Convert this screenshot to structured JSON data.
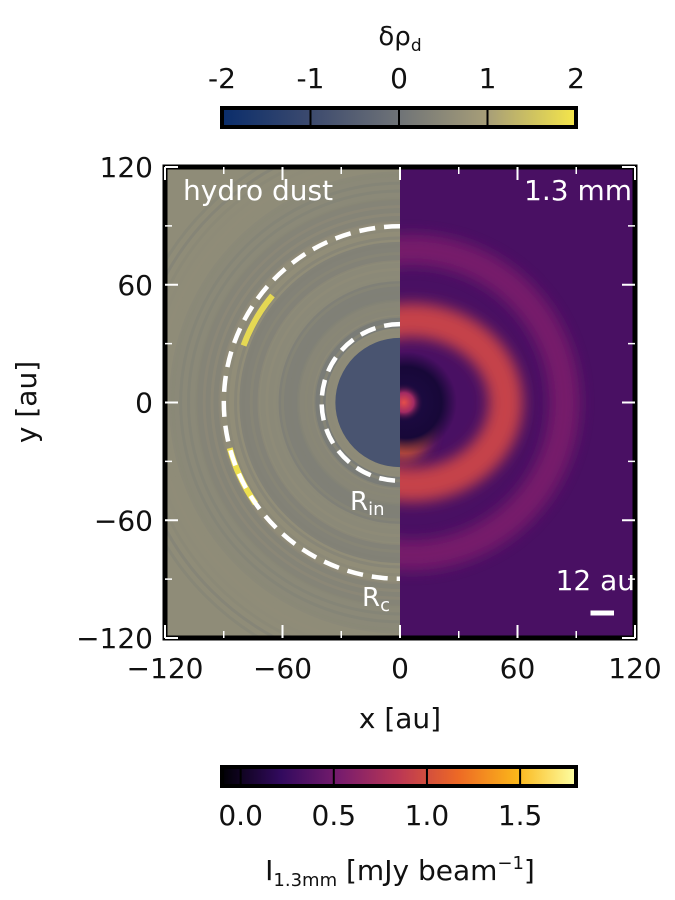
{
  "chart_data": {
    "type": "heatmap",
    "panels": [
      {
        "side": "left",
        "label": "hydro dust",
        "quantity": "δρ_d",
        "colorbar": {
          "label_main": "δρ",
          "label_sub": "d",
          "ticks": [
            -2,
            -1,
            0,
            1,
            2
          ],
          "tick_labels": [
            "-2",
            "-1",
            "0",
            "1",
            "2"
          ],
          "range": [
            -2,
            2
          ],
          "placement": "top",
          "colors": [
            "#0a2d6b",
            "#3c4a6e",
            "#6f7377",
            "#a79e78",
            "#f5e64a"
          ]
        },
        "inner_cavity_radius_au": 33,
        "rings": [
          {
            "r_au": 38,
            "value": 0.55
          },
          {
            "r_au": 44,
            "value": 0.2
          },
          {
            "r_au": 52,
            "value": 0.45
          },
          {
            "r_au": 62,
            "value": 0.3
          },
          {
            "r_au": 72,
            "value": 0.5
          },
          {
            "r_au": 82,
            "value": 0.35
          },
          {
            "r_au": 92,
            "value": 0.6
          },
          {
            "r_au": 104,
            "value": 0.4
          },
          {
            "r_au": 118,
            "value": 0.5
          }
        ],
        "bright_arcs": [
          {
            "r_au": 85,
            "theta_deg": [
              140,
              160
            ],
            "value": 1.8
          },
          {
            "r_au": 90,
            "theta_deg": [
              195,
              215
            ],
            "value": 1.9
          }
        ]
      },
      {
        "side": "right",
        "label": "1.3 mm",
        "quantity": "I_1.3mm",
        "colorbar": {
          "label_main": "I",
          "label_sub": "1.3mm",
          "label_unit": " [mJy beam",
          "label_sup": "−1",
          "label_close": "]",
          "ticks": [
            0.0,
            0.5,
            1.0,
            1.5
          ],
          "tick_labels": [
            "0.0",
            "0.5",
            "1.0",
            "1.5"
          ],
          "range": [
            -0.1,
            1.8
          ],
          "placement": "bottom",
          "colors": [
            "#000004",
            "#320a5e",
            "#781c6d",
            "#bb3754",
            "#ed6925",
            "#fbb61a",
            "#fcffa4"
          ]
        },
        "central_peak_mjy": 1.2,
        "ring_center_x_au": 6,
        "ring_radius_au": 42,
        "ring_peak_mjy": 1.15,
        "outer_ring_radius_au": 78,
        "outer_ring_mjy": 0.55,
        "background_mjy": 0.32,
        "beam_label": "12 au",
        "beam_size_au": 12
      }
    ],
    "circles": [
      {
        "label_main": "R",
        "label_sub": "in",
        "r_au": 40,
        "style": "dashed",
        "color": "#ffffff"
      },
      {
        "label_main": "R",
        "label_sub": "c",
        "r_au": 90,
        "style": "dashed",
        "color": "#ffffff"
      }
    ],
    "xlabel": "x [au]",
    "ylabel": "y [au]",
    "xlim": [
      -120,
      120
    ],
    "ylim": [
      -120,
      120
    ],
    "xticks": [
      -120,
      -60,
      0,
      60,
      120
    ],
    "yticks": [
      -120,
      -60,
      0,
      60,
      120
    ],
    "xtick_labels": [
      "−120",
      "−60",
      "0",
      "60",
      "120"
    ],
    "ytick_labels": [
      "−120",
      "−60",
      "0",
      "60",
      "120"
    ],
    "grid": false
  }
}
